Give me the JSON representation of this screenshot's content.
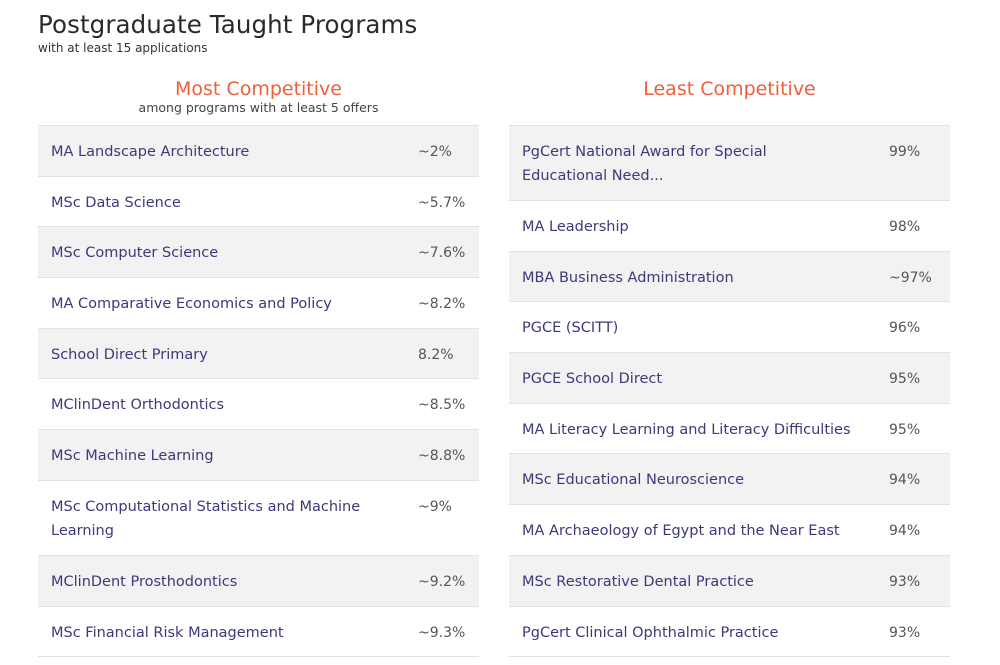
{
  "header": {
    "title": "Postgraduate Taught Programs",
    "subtitle": "with at least 15 applications"
  },
  "most_competitive": {
    "title": "Most Competitive",
    "subtitle": "among programs with at least 5 offers",
    "rows": [
      {
        "name": "MA Landscape Architecture",
        "value": "~2%"
      },
      {
        "name": "MSc Data Science",
        "value": "~5.7%"
      },
      {
        "name": "MSc Computer Science",
        "value": "~7.6%"
      },
      {
        "name": "MA Comparative Economics and Policy",
        "value": "~8.2%"
      },
      {
        "name": "School Direct Primary",
        "value": "8.2%"
      },
      {
        "name": "MClinDent Orthodontics",
        "value": "~8.5%"
      },
      {
        "name": "MSc Machine Learning",
        "value": "~8.8%"
      },
      {
        "name": "MSc Computational Statistics and Machine Learning",
        "value": "~9%"
      },
      {
        "name": "MClinDent Prosthodontics",
        "value": "~9.2%"
      },
      {
        "name": "MSc Financial Risk Management",
        "value": "~9.3%"
      }
    ]
  },
  "least_competitive": {
    "title": "Least Competitive",
    "rows": [
      {
        "name": "PgCert National Award for Special Educational Need...",
        "value": "99%"
      },
      {
        "name": "MA Leadership",
        "value": "98%"
      },
      {
        "name": "MBA Business Administration",
        "value": "~97%"
      },
      {
        "name": "PGCE (SCITT)",
        "value": "96%"
      },
      {
        "name": "PGCE School Direct",
        "value": "95%"
      },
      {
        "name": "MA Literacy Learning and Literacy Difficulties",
        "value": "95%"
      },
      {
        "name": "MSc Educational Neuroscience",
        "value": "94%"
      },
      {
        "name": "MA Archaeology of Egypt and the Near East",
        "value": "94%"
      },
      {
        "name": "MSc Restorative Dental Practice",
        "value": "93%"
      },
      {
        "name": "PgCert Clinical Ophthalmic Practice",
        "value": "93%"
      }
    ]
  }
}
